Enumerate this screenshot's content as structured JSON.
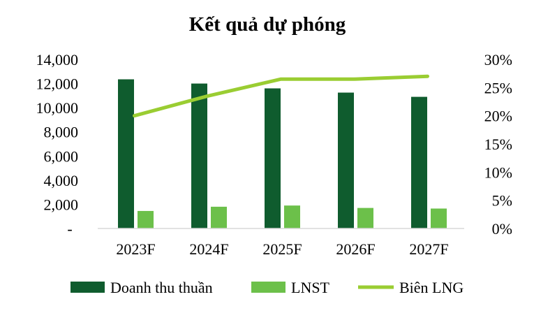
{
  "chart_data": {
    "type": "bar",
    "title": "Kết quả dự phóng",
    "categories": [
      "2023F",
      "2024F",
      "2025F",
      "2026F",
      "2027F"
    ],
    "series": [
      {
        "name": "Doanh thu thuần",
        "type": "bar",
        "axis": "left",
        "color": "#0f5c2e",
        "values": [
          12350,
          12000,
          11600,
          11250,
          10900
        ]
      },
      {
        "name": "LNST",
        "type": "bar",
        "axis": "left",
        "color": "#6cc04a",
        "values": [
          1450,
          1800,
          1900,
          1700,
          1650
        ]
      },
      {
        "name": "Biên LNG",
        "type": "line",
        "axis": "right",
        "color": "#9acd32",
        "values": [
          0.2,
          0.235,
          0.265,
          0.265,
          0.27
        ]
      }
    ],
    "y_left": {
      "ylim": [
        0,
        14000
      ],
      "ticks": [
        "-",
        "2,000",
        "4,000",
        "6,000",
        "8,000",
        "10,000",
        "12,000",
        "14,000"
      ],
      "tick_values": [
        0,
        2000,
        4000,
        6000,
        8000,
        10000,
        12000,
        14000
      ]
    },
    "y_right": {
      "ylim": [
        0,
        0.3
      ],
      "ticks": [
        "0%",
        "5%",
        "10%",
        "15%",
        "20%",
        "25%",
        "30%"
      ],
      "tick_values": [
        0,
        0.05,
        0.1,
        0.15,
        0.2,
        0.25,
        0.3
      ]
    },
    "legend": {
      "position": "bottom"
    },
    "grid": false
  }
}
